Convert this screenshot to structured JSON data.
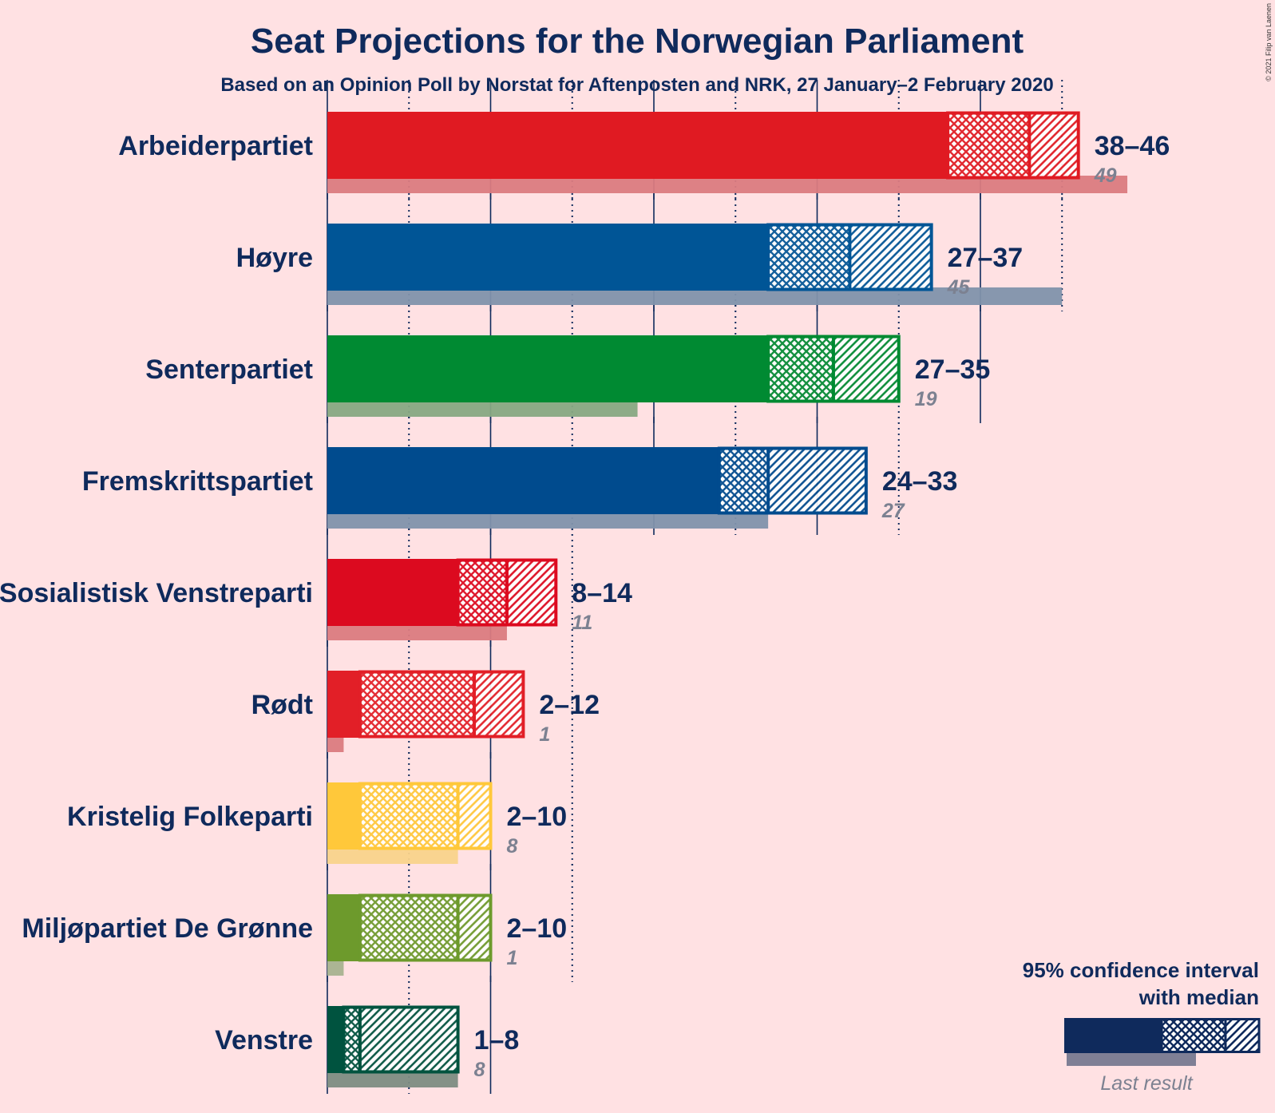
{
  "title": "Seat Projections for the Norwegian Parliament",
  "subtitle": "Based on an Opinion Poll by Norstat for Aftenposten and NRK, 27 January–2 February 2020",
  "copyright": "© 2021 Filip van Laenen",
  "legend": {
    "title_line1": "95% confidence interval",
    "title_line2": "with median",
    "last_result_label": "Last result",
    "color": "#0f2a5c"
  },
  "chart_data": {
    "type": "bar",
    "orientation": "horizontal",
    "unit": "seats",
    "xlim": [
      0,
      50
    ],
    "grid": "vertical lines every 5 seats (dotted at odd multiples of 5)",
    "parties": [
      {
        "name": "Arbeiderpartiet",
        "low": 38,
        "median": 43,
        "high": 46,
        "range_label": "38–46",
        "last_result": 49,
        "last_label": "49",
        "color": "#e01a22",
        "last_color": "#db7b80"
      },
      {
        "name": "Høyre",
        "low": 27,
        "median": 32,
        "high": 37,
        "range_label": "27–37",
        "last_result": 45,
        "last_label": "45",
        "color": "#005596",
        "last_color": "#8192ab"
      },
      {
        "name": "Senterpartiet",
        "low": 27,
        "median": 31,
        "high": 35,
        "range_label": "27–35",
        "last_result": 19,
        "last_label": "19",
        "color": "#008a32",
        "last_color": "#87a882"
      },
      {
        "name": "Fremskrittspartiet",
        "low": 24,
        "median": 27,
        "high": 33,
        "range_label": "24–33",
        "last_result": 27,
        "last_label": "27",
        "color": "#004b8e",
        "last_color": "#8192ab"
      },
      {
        "name": "Sosialistisk Venstreparti",
        "low": 8,
        "median": 11,
        "high": 14,
        "range_label": "8–14",
        "last_result": 11,
        "last_label": "11",
        "color": "#dc0a1f",
        "last_color": "#db7b80"
      },
      {
        "name": "Rødt",
        "low": 2,
        "median": 9,
        "high": 12,
        "range_label": "2–12",
        "last_result": 1,
        "last_label": "1",
        "color": "#e21f27",
        "last_color": "#db7b80"
      },
      {
        "name": "Kristelig Folkeparti",
        "low": 2,
        "median": 8,
        "high": 10,
        "range_label": "2–10",
        "last_result": 8,
        "last_label": "8",
        "color": "#ffc83a",
        "last_color": "#f9d38b"
      },
      {
        "name": "Miljøpartiet De Grønne",
        "low": 2,
        "median": 8,
        "high": 10,
        "range_label": "2–10",
        "last_result": 1,
        "last_label": "1",
        "color": "#6d9a2c",
        "last_color": "#a8b28f"
      },
      {
        "name": "Venstre",
        "low": 1,
        "median": 2,
        "high": 8,
        "range_label": "1–8",
        "last_result": 8,
        "last_label": "8",
        "color": "#00533f",
        "last_color": "#7d8c82"
      }
    ]
  }
}
